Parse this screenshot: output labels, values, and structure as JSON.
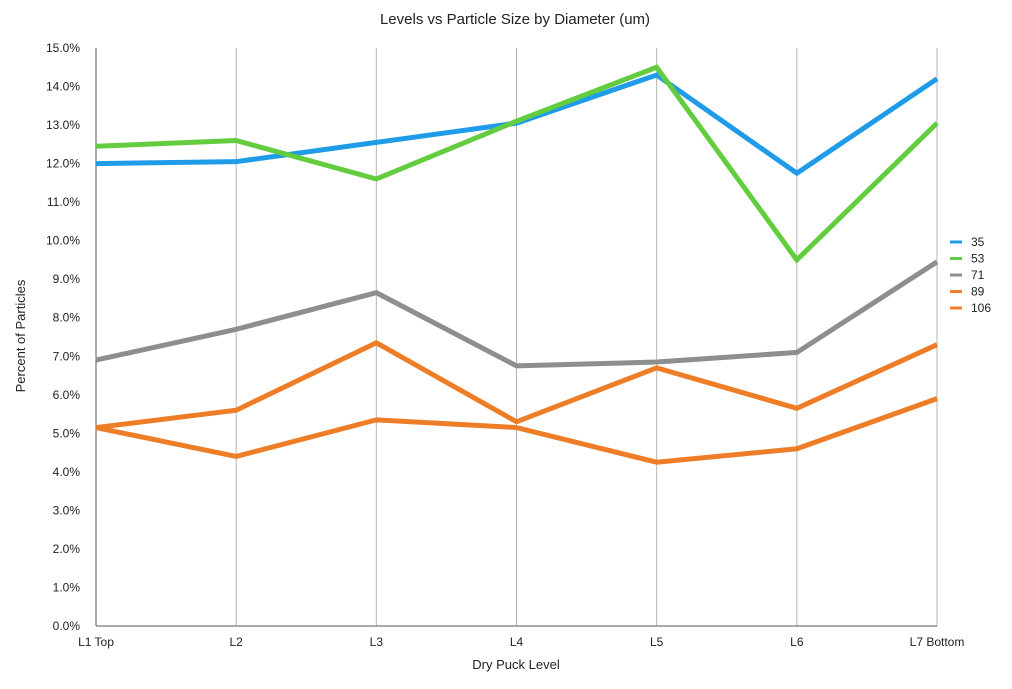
{
  "chart_data": {
    "type": "line",
    "title": "Levels vs Particle Size by Diameter (um)",
    "xlabel": "Dry Puck Level",
    "ylabel": "Percent of Particles",
    "categories": [
      "L1 Top",
      "L2",
      "L3",
      "L4",
      "L5",
      "L6",
      "L7 Bottom"
    ],
    "ylim": [
      0,
      15
    ],
    "yticks": [
      0,
      1,
      2,
      3,
      4,
      5,
      6,
      7,
      8,
      9,
      10,
      11,
      12,
      13,
      14,
      15
    ],
    "ytick_labels": [
      "0.0%",
      "1.0%",
      "2.0%",
      "3.0%",
      "4.0%",
      "5.0%",
      "6.0%",
      "7.0%",
      "8.0%",
      "9.0%",
      "10.0%",
      "11.0%",
      "12.0%",
      "13.0%",
      "14.0%",
      "15.0%"
    ],
    "grid": "vertical",
    "legend_position": "right",
    "series": [
      {
        "name": "35",
        "color": "#1f9be8",
        "values": [
          12.0,
          12.05,
          12.55,
          13.05,
          14.3,
          11.75,
          14.2
        ]
      },
      {
        "name": "53",
        "color": "#63cd3f",
        "values": [
          12.45,
          12.6,
          11.6,
          13.1,
          14.5,
          9.5,
          13.05
        ]
      },
      {
        "name": "71",
        "color": "#8e8e8e",
        "values": [
          6.9,
          7.7,
          8.65,
          6.75,
          6.85,
          7.1,
          9.45
        ]
      },
      {
        "name": "89",
        "color": "#ee7d28",
        "values": [
          5.15,
          5.6,
          7.35,
          5.3,
          6.7,
          5.65,
          7.3
        ]
      },
      {
        "name": "106",
        "color": "#ee7d28",
        "values": [
          5.15,
          4.4,
          5.35,
          5.15,
          4.25,
          4.6,
          5.9
        ]
      }
    ]
  }
}
